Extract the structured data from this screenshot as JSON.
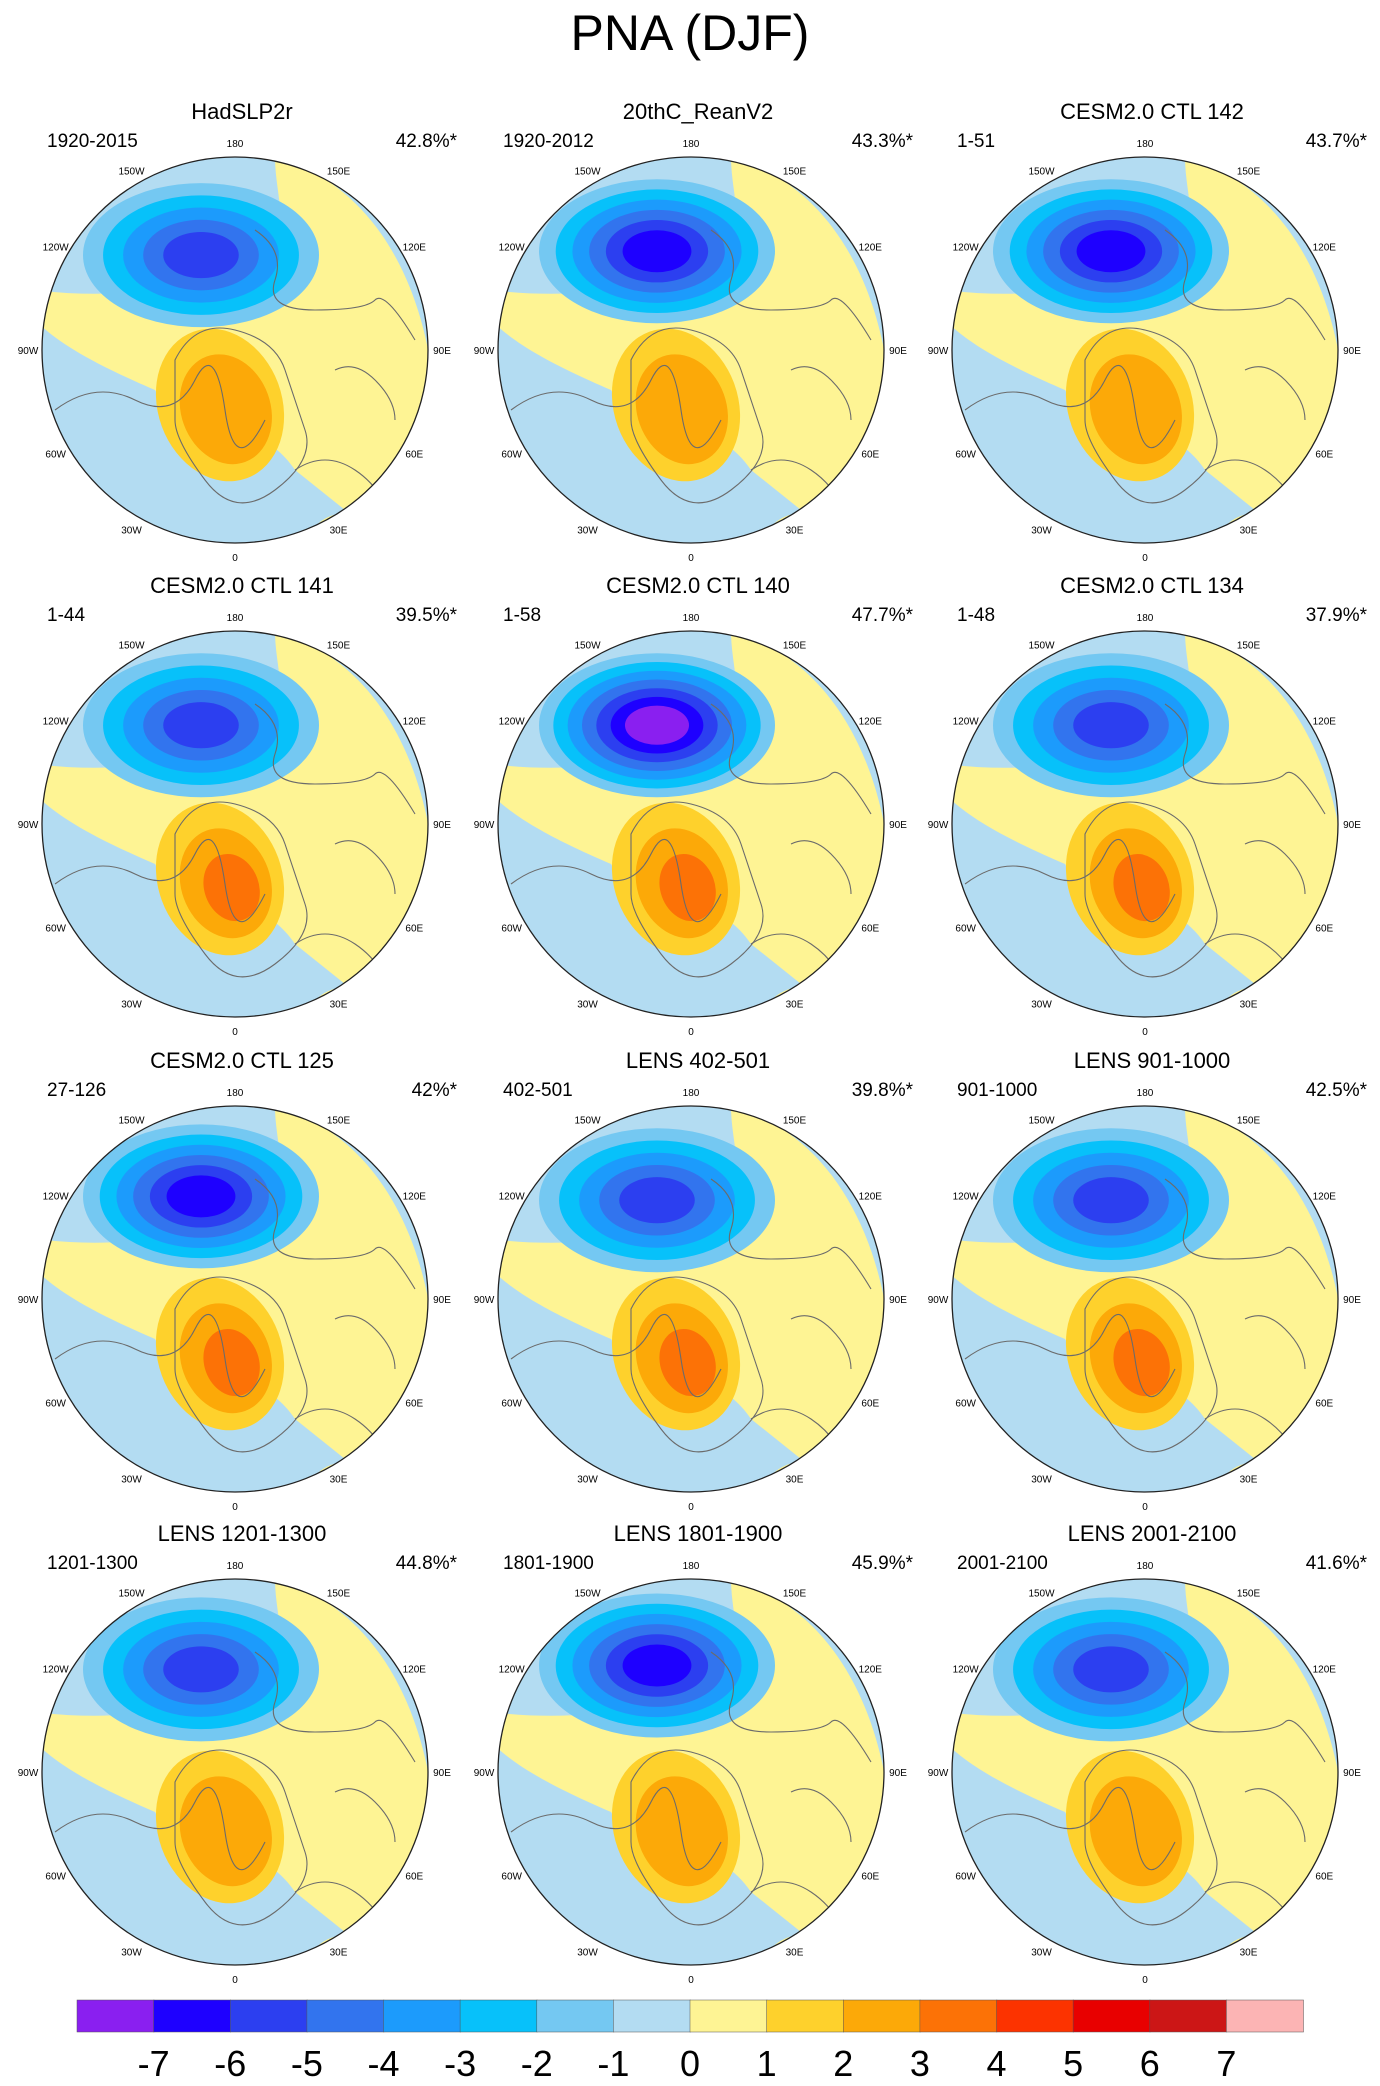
{
  "title": "PNA (DJF)",
  "longitude_labels": [
    "180",
    "150E",
    "120E",
    "90E",
    "60E",
    "30E",
    "0",
    "30W",
    "60W",
    "90W",
    "120W",
    "150W"
  ],
  "colorbar": {
    "tick_labels": [
      "-7",
      "-6",
      "-5",
      "-4",
      "-3",
      "-2",
      "-1",
      "0",
      "1",
      "2",
      "3",
      "4",
      "5",
      "6",
      "7"
    ],
    "bins": [
      {
        "color": "#8a1ff0"
      },
      {
        "color": "#1e00ff"
      },
      {
        "color": "#2c3ff0"
      },
      {
        "color": "#3274ee"
      },
      {
        "color": "#1c9bfc"
      },
      {
        "color": "#07c1fa"
      },
      {
        "color": "#74c8f2"
      },
      {
        "color": "#b3dcf2"
      },
      {
        "color": "#fef494"
      },
      {
        "color": "#fed12c"
      },
      {
        "color": "#fca908"
      },
      {
        "color": "#fc7206"
      },
      {
        "color": "#fc3300"
      },
      {
        "color": "#e80000"
      },
      {
        "color": "#cc1616"
      },
      {
        "color": "#fcb4b4"
      }
    ]
  },
  "panels": [
    {
      "title": "HadSLP2r",
      "period": "1920-2015",
      "pct": "42.8%*",
      "low": -5,
      "high": 2,
      "low_y": 0.28
    },
    {
      "title": "20thC_ReanV2",
      "period": "1920-2012",
      "pct": "43.3%*",
      "low": -6,
      "high": 2,
      "low_y": 0.27
    },
    {
      "title": "CESM2.0 CTL 142",
      "period": "1-51",
      "pct": "43.7%*",
      "low": -6,
      "high": 2,
      "low_y": 0.27
    },
    {
      "title": "CESM2.0 CTL 141",
      "period": "1-44",
      "pct": "39.5%*",
      "low": -5,
      "high": 3,
      "low_y": 0.27
    },
    {
      "title": "CESM2.0 CTL 140",
      "period": "1-58",
      "pct": "47.7%*",
      "low": -7,
      "high": 3,
      "low_y": 0.27
    },
    {
      "title": "CESM2.0 CTL 134",
      "period": "1-48",
      "pct": "37.9%*",
      "low": -5,
      "high": 3,
      "low_y": 0.27
    },
    {
      "title": "CESM2.0 CTL 125",
      "period": "27-126",
      "pct": "42%*",
      "low": -6,
      "high": 3,
      "low_y": 0.26
    },
    {
      "title": "LENS 402-501",
      "period": "402-501",
      "pct": "39.8%*",
      "low": -5,
      "high": 3,
      "low_y": 0.27
    },
    {
      "title": "LENS 901-1000",
      "period": "901-1000",
      "pct": "42.5%*",
      "low": -5,
      "high": 3,
      "low_y": 0.27
    },
    {
      "title": "LENS 1201-1300",
      "period": "1201-1300",
      "pct": "44.8%*",
      "low": -5,
      "high": 2,
      "low_y": 0.26
    },
    {
      "title": "LENS 1801-1900",
      "period": "1801-1900",
      "pct": "45.9%*",
      "low": -6,
      "high": 2,
      "low_y": 0.25
    },
    {
      "title": "LENS 2001-2100",
      "period": "2001-2100",
      "pct": "41.6%*",
      "low": -5,
      "high": 2,
      "low_y": 0.26
    }
  ]
}
